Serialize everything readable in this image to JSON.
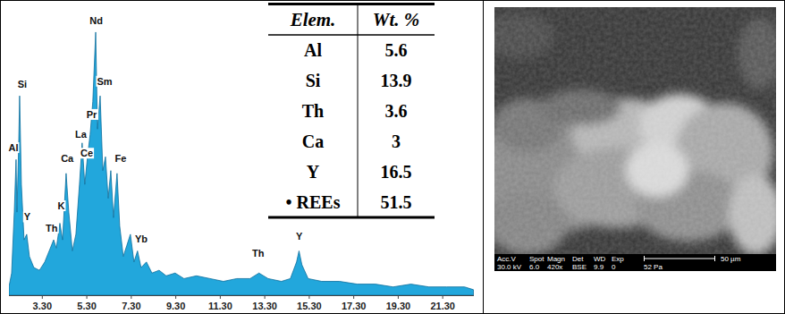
{
  "chart_data": {
    "type": "area",
    "color": "#22a7dc",
    "tick_labels": "x",
    "grid": false,
    "xlim": [
      1.8,
      22.7
    ],
    "ylim": [
      0,
      105
    ],
    "xticks": [
      {
        "value": 3.3,
        "label": "3.30"
      },
      {
        "value": 5.3,
        "label": "5.30"
      },
      {
        "value": 7.3,
        "label": "7.30"
      },
      {
        "value": 9.3,
        "label": "9.30"
      },
      {
        "value": 11.3,
        "label": "11.30"
      },
      {
        "value": 13.3,
        "label": "13.30"
      },
      {
        "value": 15.3,
        "label": "15.30"
      },
      {
        "value": 17.3,
        "label": "17.30"
      },
      {
        "value": 19.3,
        "label": "19.30"
      },
      {
        "value": 21.3,
        "label": "21.30"
      }
    ],
    "x": [
      1.8,
      1.92,
      2.04,
      2.12,
      2.16,
      2.24,
      2.28,
      2.36,
      2.48,
      2.6,
      2.72,
      2.92,
      3.17,
      3.41,
      3.61,
      3.81,
      3.93,
      4.09,
      4.21,
      4.37,
      4.49,
      4.65,
      4.81,
      4.97,
      5.09,
      5.21,
      5.33,
      5.45,
      5.57,
      5.7,
      5.78,
      5.9,
      6.02,
      6.14,
      6.26,
      6.38,
      6.5,
      6.66,
      6.78,
      6.94,
      7.1,
      7.26,
      7.42,
      7.58,
      7.74,
      7.98,
      8.23,
      8.55,
      8.87,
      9.27,
      9.67,
      10.23,
      10.84,
      11.44,
      12.04,
      12.64,
      13.04,
      13.45,
      14.05,
      14.45,
      14.73,
      14.84,
      14.97,
      15.25,
      15.86,
      16.66,
      17.46,
      18.27,
      19.07,
      19.87,
      20.68,
      21.48,
      22.28,
      22.68
    ],
    "values": [
      3,
      8,
      30,
      49,
      30,
      55,
      72,
      40,
      20,
      22,
      14,
      10,
      9,
      12,
      16,
      20,
      17,
      26,
      20,
      44,
      30,
      16,
      22,
      40,
      55,
      40,
      50,
      58,
      70,
      95,
      60,
      72,
      45,
      50,
      35,
      45,
      28,
      44,
      25,
      14,
      18,
      22,
      12,
      16,
      10,
      12,
      8,
      9,
      7,
      8,
      6,
      7,
      6,
      5,
      6,
      6,
      8,
      6,
      5,
      6,
      12,
      16,
      11,
      6,
      5,
      5,
      4,
      4,
      3,
      4,
      3,
      3,
      3,
      2
    ],
    "annotations": [
      {
        "text": "Si",
        "x": 2.4,
        "y": 75
      },
      {
        "text": "Al",
        "x": 2.0,
        "y": 52
      },
      {
        "text": "Y",
        "x": 2.62,
        "y": 27
      },
      {
        "text": "Ca",
        "x": 4.42,
        "y": 48
      },
      {
        "text": "K",
        "x": 4.15,
        "y": 31
      },
      {
        "text": "Th",
        "x": 3.72,
        "y": 23
      },
      {
        "text": "La",
        "x": 5.03,
        "y": 57
      },
      {
        "text": "Ce",
        "x": 5.3,
        "y": 50
      },
      {
        "text": "Pr",
        "x": 5.52,
        "y": 64
      },
      {
        "text": "Nd",
        "x": 5.72,
        "y": 98
      },
      {
        "text": "Sm",
        "x": 6.1,
        "y": 76
      },
      {
        "text": "Fe",
        "x": 6.82,
        "y": 48
      },
      {
        "text": "Yb",
        "x": 7.75,
        "y": 19
      },
      {
        "text": "Th",
        "x": 13.0,
        "y": 14
      },
      {
        "text": "Y",
        "x": 14.85,
        "y": 20
      }
    ]
  },
  "table": {
    "header": [
      "Elem.",
      "Wt. %"
    ],
    "rows": [
      [
        "Al",
        "5.6"
      ],
      [
        "Si",
        "13.9"
      ],
      [
        "Th",
        "3.6"
      ],
      [
        "Ca",
        "3"
      ],
      [
        "Y",
        "16.5"
      ],
      [
        "• REEs",
        "51.5"
      ]
    ]
  },
  "sem_image": {
    "info_labels": [
      "Acc.V",
      "Spot",
      "Magn",
      "Det",
      "WD",
      "Exp"
    ],
    "info_values": [
      "30.0 kV",
      "6.0",
      "420x",
      "BSE",
      "9.9",
      "0"
    ],
    "scale_bar": "50 µm",
    "pressure": "52 Pa"
  }
}
